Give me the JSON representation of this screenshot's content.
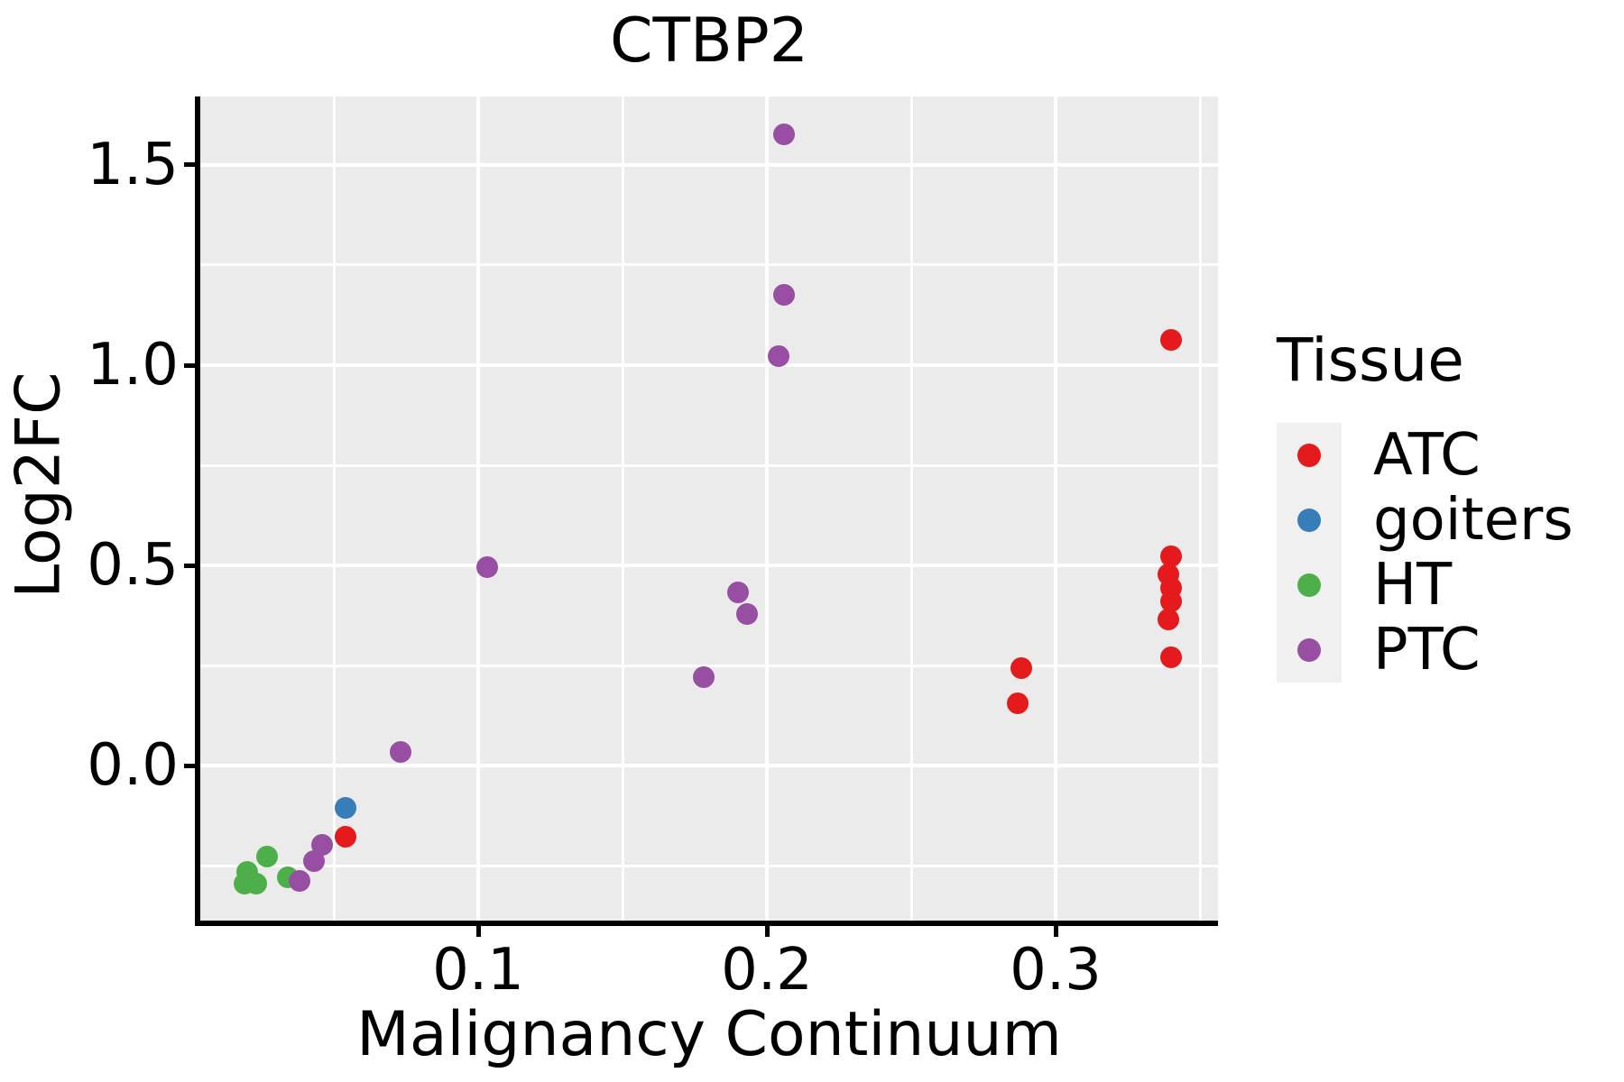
{
  "title": "CTBP2",
  "axes": {
    "x": {
      "label": "Malignancy Continuum",
      "range": [
        0.00375,
        0.35625
      ],
      "major_ticks": [
        0.1,
        0.2,
        0.3
      ],
      "tick_labels": [
        "0.1",
        "0.2",
        "0.3"
      ],
      "minor_ticks": [
        0.05,
        0.15,
        0.25,
        0.35
      ]
    },
    "y": {
      "label": "Log2FC",
      "range": [
        -0.387,
        1.671
      ],
      "major_ticks": [
        0.0,
        0.5,
        1.0,
        1.5
      ],
      "tick_labels": [
        "0.0",
        "0.5",
        "1.0",
        "1.5"
      ],
      "minor_ticks": [
        -0.25,
        0.25,
        0.75,
        1.25
      ]
    }
  },
  "legend": {
    "title": "Tissue",
    "entries": [
      {
        "label": "ATC",
        "color": "#E41A1C"
      },
      {
        "label": "goiters",
        "color": "#377EB8"
      },
      {
        "label": "HT",
        "color": "#4DAF4A"
      },
      {
        "label": "PTC",
        "color": "#984EA3"
      }
    ]
  },
  "chart_data": {
    "type": "scatter",
    "title": "CTBP2",
    "xlabel": "Malignancy Continuum",
    "ylabel": "Log2FC",
    "xlim": [
      0.00375,
      0.35625
    ],
    "ylim": [
      -0.387,
      1.671
    ],
    "grid": true,
    "legend_position": "right",
    "legend_title": "Tissue",
    "series": [
      {
        "name": "ATC",
        "color": "#E41A1C",
        "points": [
          [
            0.34,
            1.063
          ],
          [
            0.34,
            0.523
          ],
          [
            0.339,
            0.477
          ],
          [
            0.34,
            0.444
          ],
          [
            0.34,
            0.411
          ],
          [
            0.339,
            0.366
          ],
          [
            0.34,
            0.27
          ],
          [
            0.288,
            0.244
          ],
          [
            0.287,
            0.155
          ],
          [
            0.054,
            -0.177
          ]
        ]
      },
      {
        "name": "goiters",
        "color": "#377EB8",
        "points": [
          [
            0.054,
            -0.105
          ]
        ]
      },
      {
        "name": "HT",
        "color": "#4DAF4A",
        "points": [
          [
            0.027,
            -0.227
          ],
          [
            0.02,
            -0.266
          ],
          [
            0.019,
            -0.295
          ],
          [
            0.023,
            -0.295
          ],
          [
            0.034,
            -0.279
          ]
        ]
      },
      {
        "name": "PTC",
        "color": "#984EA3",
        "points": [
          [
            0.206,
            1.576
          ],
          [
            0.206,
            1.175
          ],
          [
            0.204,
            1.022
          ],
          [
            0.103,
            0.495
          ],
          [
            0.19,
            0.433
          ],
          [
            0.193,
            0.379
          ],
          [
            0.178,
            0.221
          ],
          [
            0.073,
            0.033
          ],
          [
            0.046,
            -0.198
          ],
          [
            0.043,
            -0.239
          ],
          [
            0.038,
            -0.288
          ]
        ]
      }
    ]
  },
  "colors": {
    "panel_background": "#EBEBEB",
    "gridline": "#FFFFFF",
    "axis_line": "#000000",
    "legend_key_background": "#F0F0F0",
    "text": "#000000"
  }
}
